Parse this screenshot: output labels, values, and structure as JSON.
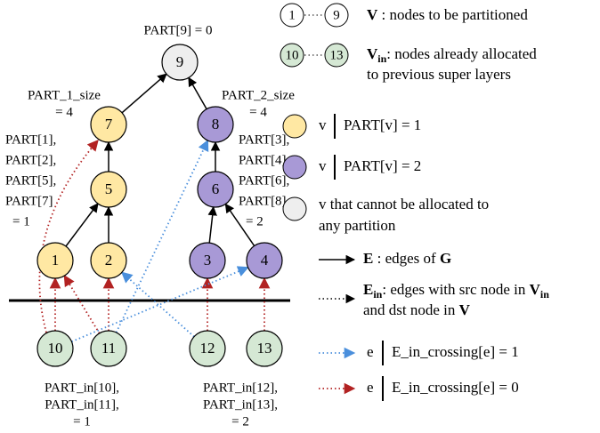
{
  "nodes": [
    {
      "label": "9"
    },
    {
      "label": "7"
    },
    {
      "label": "8"
    },
    {
      "label": "5"
    },
    {
      "label": "6"
    },
    {
      "label": "1"
    },
    {
      "label": "2"
    },
    {
      "label": "3"
    },
    {
      "label": "4"
    },
    {
      "label": "10"
    },
    {
      "label": "11"
    },
    {
      "label": "12"
    },
    {
      "label": "13"
    }
  ],
  "annotations": [
    {
      "lines": [
        "PART[9] = 0"
      ]
    },
    {
      "lines": [
        "PART_1_size",
        "= 4"
      ]
    },
    {
      "lines": [
        "PART_2_size",
        "= 4"
      ]
    },
    {
      "lines": [
        "PART[1],",
        "PART[2],",
        "PART[5],",
        "PART[7]",
        "= 1"
      ]
    },
    {
      "lines": [
        "PART[3],",
        "PART[4],",
        "PART[6],",
        "PART[8]",
        "= 2"
      ]
    },
    {
      "lines": [
        "PART_in[10],",
        "PART_in[11],",
        "= 1"
      ]
    },
    {
      "lines": [
        "PART_in[12],",
        "PART_in[13],",
        "= 2"
      ]
    }
  ],
  "legend": {
    "nodes_range": {
      "from": "1",
      "to": "9",
      "symbol": "V",
      "text": " : nodes to be partitioned"
    },
    "vin_range": {
      "from": "10",
      "to": "13",
      "symbol": "V",
      "sub": "in",
      "text": ": nodes already allocated",
      "text2": "to previous super layers"
    },
    "part1": {
      "var": "v",
      "text": "PART[v] = 1"
    },
    "part2": {
      "var": "v",
      "text": "PART[v] = 2"
    },
    "none": {
      "lines": [
        "v that cannot be allocated to",
        "any partition"
      ]
    },
    "edges": {
      "symbol": "E",
      "text": " : edges of ",
      "graph": "G"
    },
    "edges_in": {
      "symbol": "E",
      "sub": "in",
      "text": ": edges with src node in ",
      "symbol2": "V",
      "sub2": "in",
      "text2": "and dst node in ",
      "symbol3": "V"
    },
    "crossing1": {
      "var": "e",
      "text": "E_in_crossing[e] = 1"
    },
    "crossing0": {
      "var": "e",
      "text": "E_in_crossing[e] = 0"
    }
  }
}
